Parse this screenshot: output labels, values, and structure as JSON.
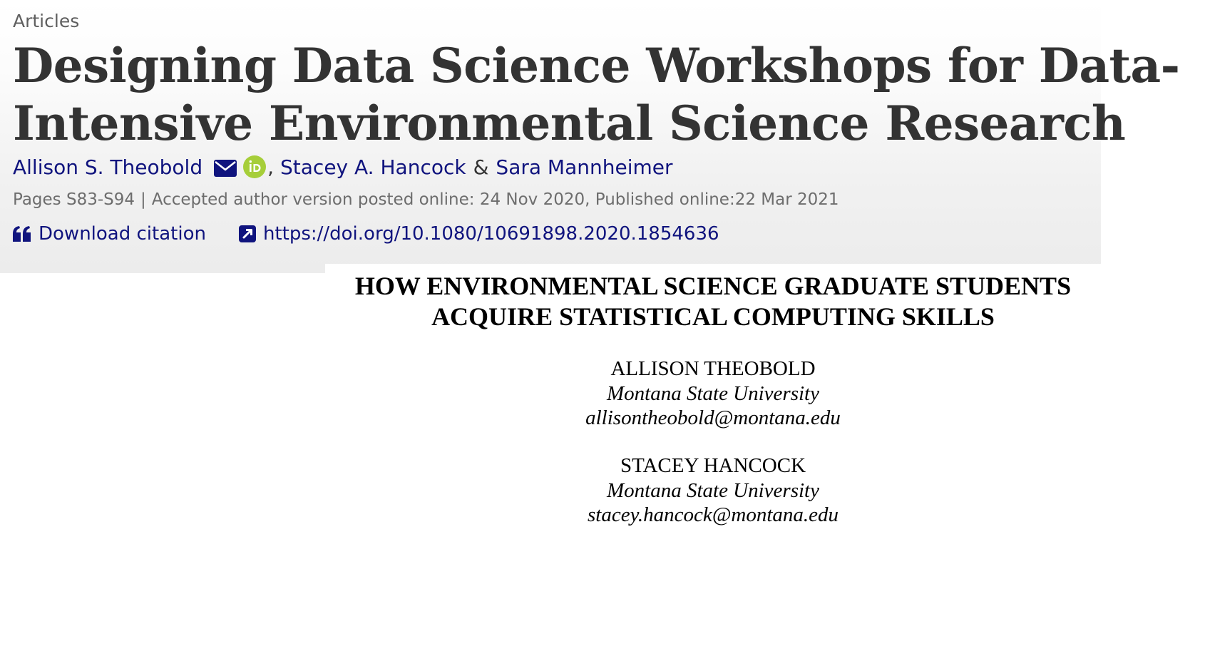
{
  "article": {
    "type": "Articles",
    "title_lines": [
      "Designing Data Science Workshops for Data-",
      "Intensive Environmental Science Research"
    ],
    "authors": [
      {
        "name": "Allison S. Theobold"
      },
      {
        "name": "Stacey A. Hancock"
      },
      {
        "name": "Sara Mannheimer"
      }
    ],
    "author_separator": ",",
    "author_conjunction": "&",
    "icons": {
      "email": "envelope-icon",
      "orcid": "orcid-icon",
      "citation": "quote-icon",
      "doi": "external-link-icon"
    },
    "meta": {
      "pages": "Pages S83-S94",
      "divider": "|",
      "dates": "Accepted author version posted online: 24 Nov 2020, Published online:22 Mar 2021"
    },
    "actions": {
      "download_citation": "Download citation",
      "doi_link": "https://doi.org/10.1080/10691898.2020.1854636"
    }
  },
  "paper": {
    "title_lines": [
      "HOW ENVIRONMENTAL SCIENCE GRADUATE STUDENTS",
      "ACQUIRE STATISTICAL COMPUTING SKILLS"
    ],
    "authors": [
      {
        "name": "ALLISON THEOBOLD",
        "affiliation": "Montana State University",
        "email": "allisontheobold@montana.edu"
      },
      {
        "name": "STACEY HANCOCK",
        "affiliation": "Montana State University",
        "email": "stacey.hancock@montana.edu"
      }
    ]
  },
  "colors": {
    "link": "#10147e",
    "title": "#333333",
    "meta": "#6d6d6d",
    "orcid": "#a6ce39"
  }
}
